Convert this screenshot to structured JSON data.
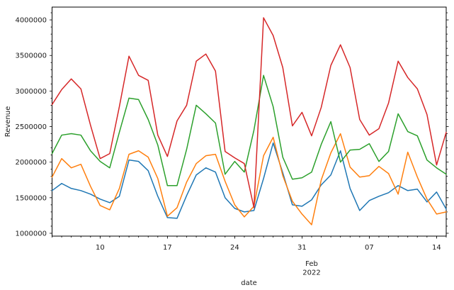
{
  "figure": {
    "ylabel": "Revenue",
    "xlabel": "date"
  },
  "chart_data": {
    "type": "line",
    "title": "",
    "xlabel": "date",
    "ylabel": "Revenue",
    "grid": false,
    "legend": null,
    "ylim": [
      960000,
      4180000
    ],
    "y_ticks": {
      "values": [
        1000000,
        1500000,
        2000000,
        2500000,
        3000000,
        3500000,
        4000000
      ],
      "labels": [
        "1000000",
        "1500000",
        "2000000",
        "2500000",
        "3000000",
        "3500000",
        "4000000"
      ],
      "minor_step": 100000
    },
    "x_major_ticks": [
      {
        "index": 5,
        "label": "10"
      },
      {
        "index": 12,
        "label": "17"
      },
      {
        "index": 19,
        "label": "24"
      },
      {
        "index": 26,
        "label": "31"
      },
      {
        "index": 33,
        "label": "07"
      },
      {
        "index": 40,
        "label": "14"
      }
    ],
    "x_month_label": {
      "index": 27,
      "lines": [
        "Feb",
        "2022"
      ]
    },
    "x": [
      "2022-01-05",
      "2022-01-06",
      "2022-01-07",
      "2022-01-08",
      "2022-01-09",
      "2022-01-10",
      "2022-01-11",
      "2022-01-12",
      "2022-01-13",
      "2022-01-14",
      "2022-01-15",
      "2022-01-16",
      "2022-01-17",
      "2022-01-18",
      "2022-01-19",
      "2022-01-20",
      "2022-01-21",
      "2022-01-22",
      "2022-01-23",
      "2022-01-24",
      "2022-01-25",
      "2022-01-26",
      "2022-01-27",
      "2022-01-28",
      "2022-01-29",
      "2022-01-30",
      "2022-01-31",
      "2022-02-01",
      "2022-02-02",
      "2022-02-03",
      "2022-02-04",
      "2022-02-05",
      "2022-02-06",
      "2022-02-07",
      "2022-02-08",
      "2022-02-09",
      "2022-02-10",
      "2022-02-11",
      "2022-02-12",
      "2022-02-13",
      "2022-02-14",
      "2022-02-15"
    ],
    "series": [
      {
        "name": "series-blue",
        "color": "#1f77b4",
        "values": [
          1600000,
          1700000,
          1630000,
          1600000,
          1550000,
          1480000,
          1430000,
          1520000,
          2030000,
          2010000,
          1880000,
          1520000,
          1220000,
          1210000,
          1530000,
          1820000,
          1920000,
          1860000,
          1500000,
          1350000,
          1300000,
          1320000,
          1770000,
          2270000,
          1850000,
          1400000,
          1380000,
          1470000,
          1680000,
          1820000,
          2160000,
          1630000,
          1320000,
          1460000,
          1520000,
          1570000,
          1670000,
          1600000,
          1620000,
          1440000,
          1580000,
          1340000
        ]
      },
      {
        "name": "series-orange",
        "color": "#ff7f0e",
        "values": [
          1790000,
          2050000,
          1920000,
          1970000,
          1660000,
          1390000,
          1330000,
          1630000,
          2110000,
          2160000,
          2070000,
          1770000,
          1240000,
          1360000,
          1720000,
          1980000,
          2090000,
          2110000,
          1730000,
          1400000,
          1230000,
          1380000,
          2090000,
          2350000,
          1810000,
          1450000,
          1270000,
          1120000,
          1750000,
          2130000,
          2400000,
          1930000,
          1790000,
          1810000,
          1940000,
          1840000,
          1550000,
          2140000,
          1790000,
          1480000,
          1270000,
          1300000
        ]
      },
      {
        "name": "series-green",
        "color": "#2ca02c",
        "values": [
          2120000,
          2380000,
          2400000,
          2380000,
          2160000,
          2010000,
          1920000,
          2420000,
          2900000,
          2880000,
          2600000,
          2240000,
          1670000,
          1670000,
          2180000,
          2800000,
          2680000,
          2550000,
          1830000,
          2010000,
          1860000,
          2450000,
          3220000,
          2780000,
          2070000,
          1760000,
          1780000,
          1860000,
          2250000,
          2570000,
          2000000,
          2170000,
          2180000,
          2260000,
          2010000,
          2150000,
          2680000,
          2430000,
          2370000,
          2030000,
          1920000,
          1830000
        ]
      },
      {
        "name": "series-red",
        "color": "#d62728",
        "values": [
          2810000,
          3020000,
          3170000,
          3030000,
          2520000,
          2050000,
          2120000,
          2780000,
          3490000,
          3220000,
          3150000,
          2380000,
          2080000,
          2580000,
          2800000,
          3420000,
          3520000,
          3280000,
          2150000,
          2060000,
          1980000,
          1360000,
          4030000,
          3780000,
          3330000,
          2510000,
          2700000,
          2370000,
          2770000,
          3360000,
          3650000,
          3330000,
          2600000,
          2380000,
          2470000,
          2830000,
          3420000,
          3190000,
          3030000,
          2670000,
          1960000,
          2420000
        ]
      }
    ]
  }
}
